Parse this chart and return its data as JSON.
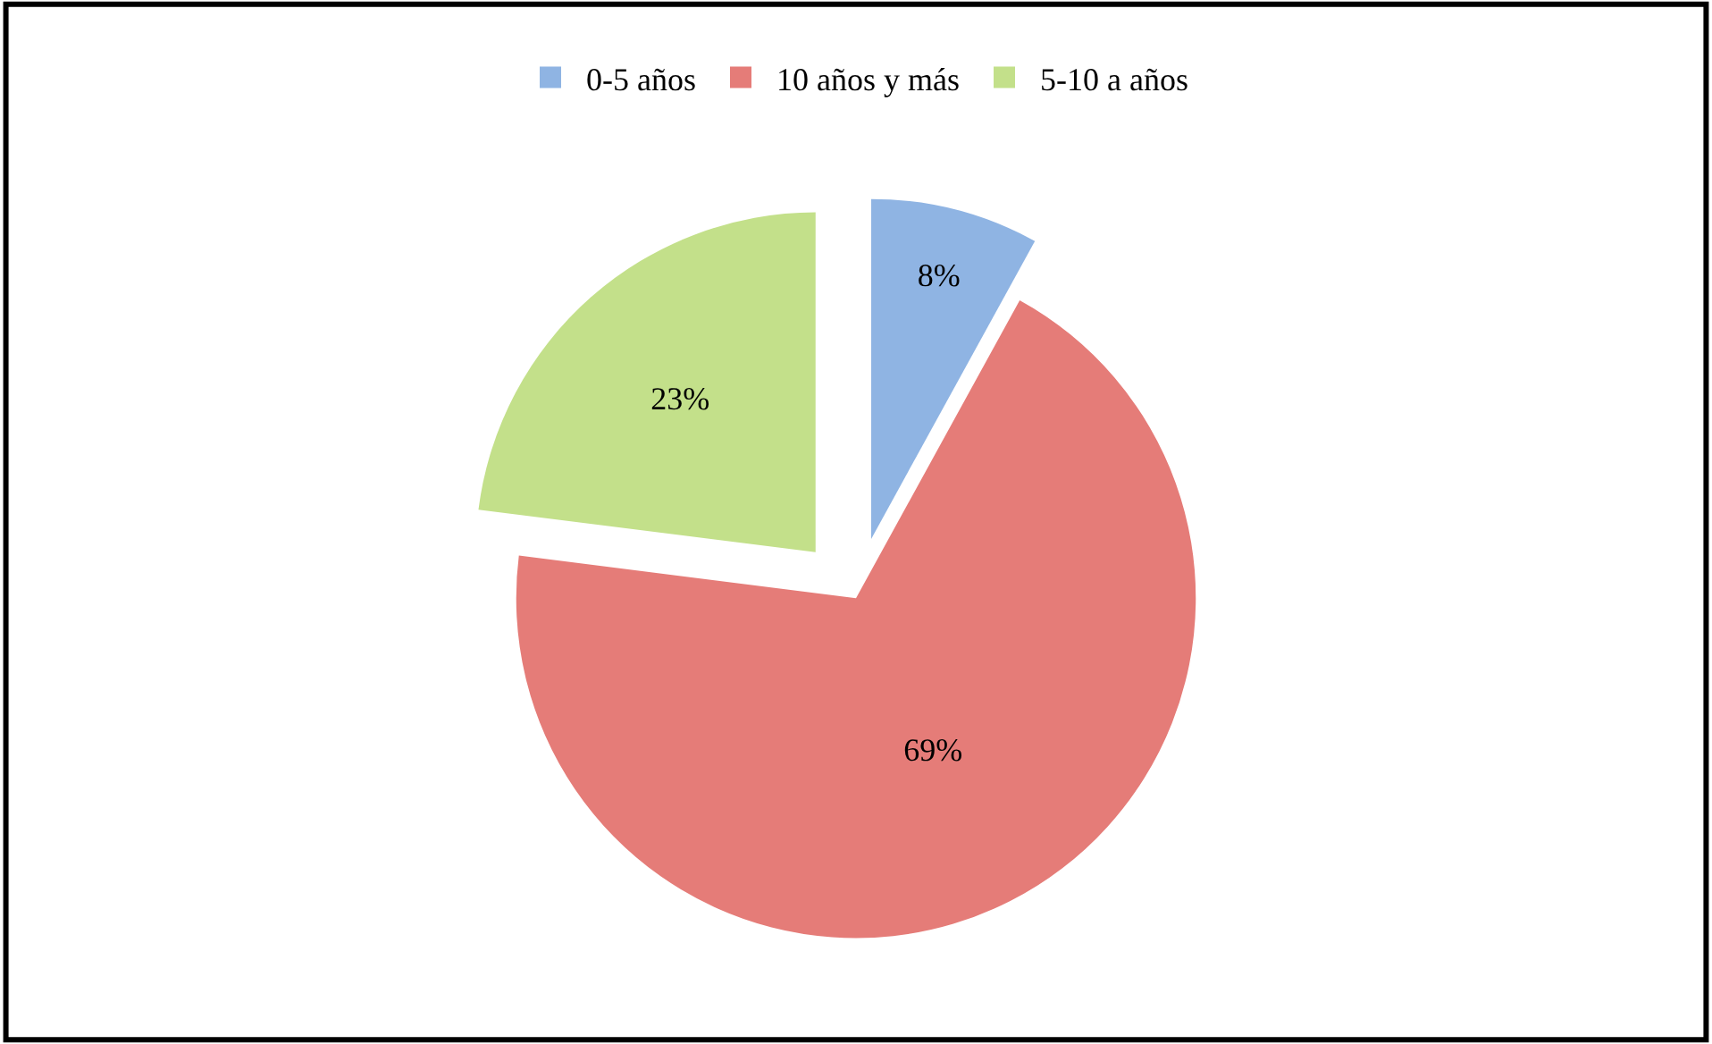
{
  "chart_data": {
    "type": "pie",
    "categories": [
      "0-5 años",
      "10 años y más",
      "5-10 a años"
    ],
    "values": [
      8,
      69,
      23
    ],
    "value_labels": [
      "8%",
      "69%",
      "23%"
    ],
    "colors": [
      "#8fb4e3",
      "#e57c78",
      "#c3e08a"
    ],
    "legend": "top"
  }
}
